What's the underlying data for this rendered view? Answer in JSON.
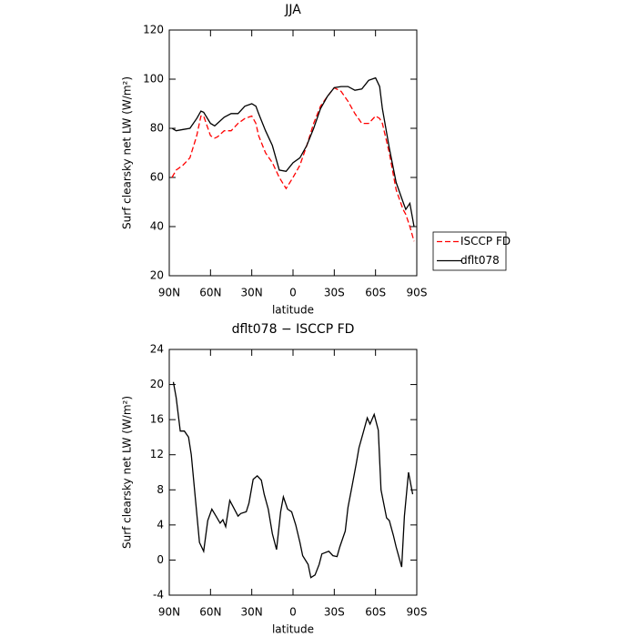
{
  "chart_data": [
    {
      "type": "line",
      "title": "JJA",
      "xlabel": "latitude",
      "ylabel": "Surf clearsky net LW (W/m²)",
      "x": [
        88,
        85,
        80,
        75,
        70,
        67,
        65,
        60,
        57,
        55,
        50,
        45,
        40,
        35,
        30,
        27,
        25,
        20,
        15,
        10,
        5,
        0,
        -5,
        -10,
        -15,
        -20,
        -25,
        -30,
        -35,
        -40,
        -45,
        -50,
        -55,
        -60,
        -63,
        -65,
        -70,
        -75,
        -80,
        -82,
        -85,
        -88
      ],
      "series": [
        {
          "name": "ISCCP FD",
          "color": "#ff0000",
          "line_style": "dashed",
          "values": [
            60,
            63,
            65,
            68,
            77,
            85,
            85,
            77,
            76,
            76.5,
            79,
            79,
            82,
            84,
            85,
            82,
            77,
            70,
            66,
            60,
            55.5,
            60,
            65,
            73,
            82,
            89,
            93,
            96.5,
            95,
            91,
            86,
            82,
            82,
            85,
            84,
            82,
            70,
            55,
            47,
            45,
            40,
            34
          ]
        },
        {
          "name": "dflt078",
          "color": "#000000",
          "line_style": "solid",
          "values": [
            80,
            79,
            79.5,
            80,
            84,
            87,
            86.5,
            82,
            81,
            82,
            84.5,
            86,
            86,
            89,
            90,
            89,
            86,
            79,
            73,
            63,
            62.5,
            66,
            68,
            73,
            80,
            88,
            93,
            96.5,
            97,
            97,
            95.5,
            96,
            99.5,
            100.5,
            97,
            88,
            72,
            58,
            50,
            47,
            49.5,
            40
          ]
        }
      ],
      "xlim": [
        90,
        -90
      ],
      "xticks": [
        {
          "value": 90,
          "label": "90N"
        },
        {
          "value": 60,
          "label": "60N"
        },
        {
          "value": 30,
          "label": "30N"
        },
        0,
        {
          "value": -30,
          "label": "30S"
        },
        {
          "value": -60,
          "label": "60S"
        },
        {
          "value": -90,
          "label": "90S"
        }
      ],
      "ylim": [
        20,
        120
      ],
      "yticks": [
        20,
        40,
        60,
        80,
        100,
        120
      ],
      "legend": "right"
    },
    {
      "type": "line",
      "title": "dflt078 − ISCCP FD",
      "xlabel": "latitude",
      "ylabel": "Surf clearsky net LW (W/m²)",
      "x": [
        87,
        85,
        82,
        79,
        76,
        74,
        71,
        68,
        65,
        62,
        59,
        56,
        53,
        51,
        49,
        46,
        44,
        40,
        38,
        34,
        32,
        29,
        26,
        23,
        21,
        18,
        15,
        12,
        9,
        7,
        4,
        1,
        -2,
        -5,
        -7,
        -11,
        -13,
        -16,
        -19,
        -21,
        -26,
        -29,
        -32,
        -34,
        -38,
        -40,
        -43,
        -46,
        -48,
        -51,
        -54,
        -56,
        -59,
        -62,
        -64,
        -68,
        -70,
        -73,
        -75,
        -79,
        -81,
        -84,
        -87
      ],
      "series": [
        {
          "name": "dflt078 − ISCCP FD",
          "color": "#000000",
          "line_style": "solid",
          "values": [
            20.3,
            18.5,
            14.7,
            14.7,
            14,
            12,
            7,
            2,
            1,
            4.5,
            5.8,
            5,
            4.2,
            4.6,
            3.8,
            6.8,
            6.2,
            5,
            5.3,
            5.5,
            6.5,
            9.2,
            9.6,
            9.1,
            7.5,
            5.8,
            3,
            1.2,
            5.5,
            7.2,
            5.8,
            5.5,
            4,
            2,
            0.5,
            -0.5,
            -2,
            -1.7,
            -0.5,
            0.7,
            1,
            0.5,
            0.4,
            1.5,
            3.3,
            6,
            8.5,
            11,
            12.8,
            14.5,
            16.2,
            15.5,
            16.6,
            14.8,
            8,
            4.8,
            4.5,
            2.8,
            1.5,
            -0.8,
            5,
            10,
            7.5
          ]
        }
      ],
      "xlim": [
        90,
        -90
      ],
      "xticks": [
        {
          "value": 90,
          "label": "90N"
        },
        {
          "value": 60,
          "label": "60N"
        },
        {
          "value": 30,
          "label": "30N"
        },
        0,
        {
          "value": -30,
          "label": "30S"
        },
        {
          "value": -60,
          "label": "60S"
        },
        {
          "value": -90,
          "label": "90S"
        }
      ],
      "ylim": [
        -4,
        24
      ],
      "yticks": [
        -4,
        0,
        4,
        8,
        12,
        16,
        20,
        24
      ]
    }
  ]
}
